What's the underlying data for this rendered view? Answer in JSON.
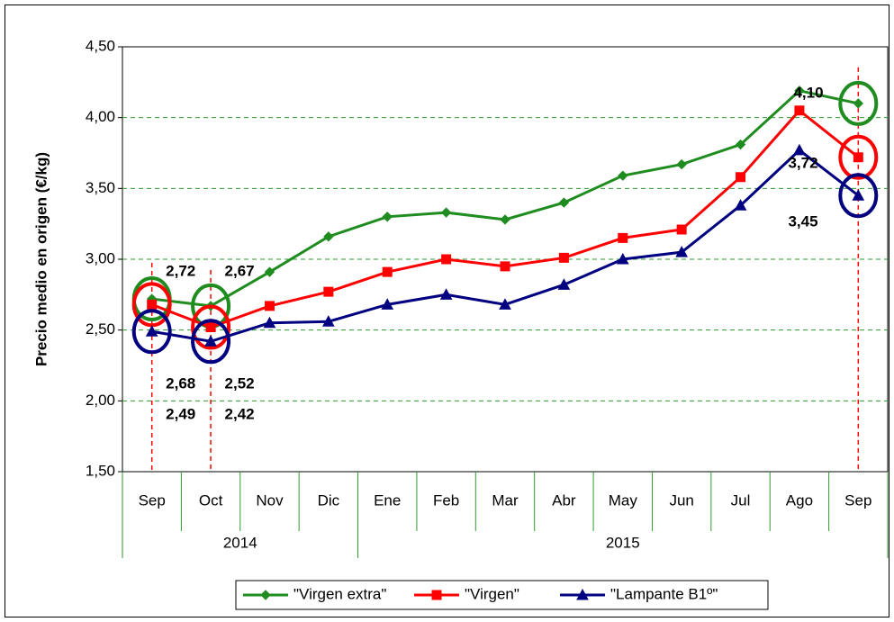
{
  "chart_data": {
    "type": "line",
    "y_label": "Precio medio en origen (€/kg)",
    "categories": [
      "Sep",
      "Oct",
      "Nov",
      "Dic",
      "Ene",
      "Feb",
      "Mar",
      "Abr",
      "May",
      "Jun",
      "Jul",
      "Ago",
      "Sep"
    ],
    "category_years": [
      "2014",
      "2014",
      "2014",
      "2014",
      "2015",
      "2015",
      "2015",
      "2015",
      "2015",
      "2015",
      "2015",
      "2015",
      "2015"
    ],
    "ylim": [
      1.5,
      4.5
    ],
    "yticks": [
      {
        "value": 1.5,
        "label": "1,50"
      },
      {
        "value": 2,
        "label": "2,00"
      },
      {
        "value": 2.5,
        "label": "2,50"
      },
      {
        "value": 3,
        "label": "3,00"
      },
      {
        "value": 3.5,
        "label": "3,50"
      },
      {
        "value": 4,
        "label": "4,00"
      },
      {
        "value": 4.5,
        "label": "4,50"
      }
    ],
    "grid": true,
    "legend": "bottom",
    "series": [
      {
        "name": "\"Virgen extra\"",
        "color": "#1f8c1f",
        "marker": "diamond",
        "values": [
          2.72,
          2.67,
          2.91,
          3.16,
          3.3,
          3.33,
          3.28,
          3.4,
          3.59,
          3.67,
          3.81,
          4.19,
          4.1
        ],
        "value_labels": [
          "2,72",
          "2,67",
          null,
          null,
          null,
          null,
          null,
          null,
          null,
          null,
          null,
          null,
          "4,10"
        ]
      },
      {
        "name": "\"Virgen\"",
        "color": "#ff0000",
        "marker": "square",
        "values": [
          2.68,
          2.52,
          2.67,
          2.77,
          2.91,
          3.0,
          2.95,
          3.01,
          3.15,
          3.21,
          3.58,
          4.05,
          3.72
        ],
        "value_labels": [
          "2,68",
          "2,52",
          null,
          null,
          null,
          null,
          null,
          null,
          null,
          null,
          null,
          null,
          "3,72"
        ]
      },
      {
        "name": "\"Lampante B1º\"",
        "color": "#000080",
        "marker": "triangle",
        "values": [
          2.49,
          2.42,
          2.55,
          2.56,
          2.68,
          2.75,
          2.68,
          2.82,
          3.0,
          3.05,
          3.38,
          3.77,
          3.45
        ],
        "value_labels": [
          "2,49",
          "2,42",
          null,
          null,
          null,
          null,
          null,
          null,
          null,
          null,
          null,
          null,
          "3,45"
        ]
      }
    ]
  }
}
